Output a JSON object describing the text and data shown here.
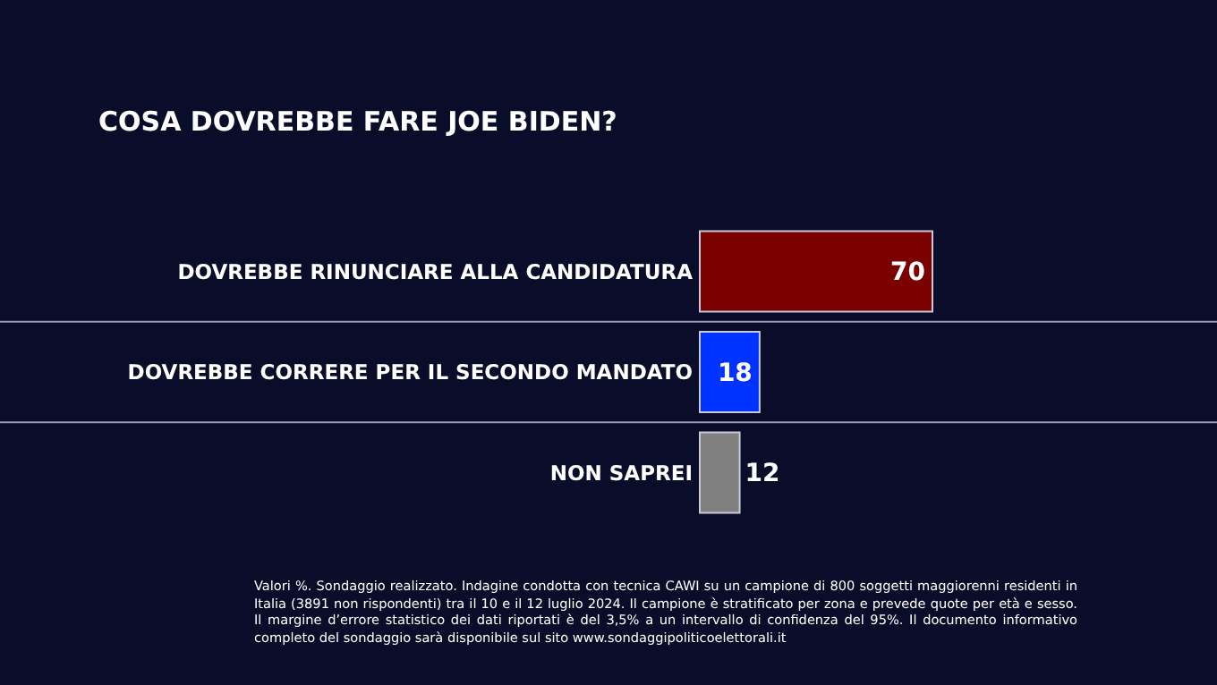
{
  "chart_data": {
    "type": "bar",
    "orientation": "horizontal",
    "title": "COSA DOVREBBE FARE JOE BIDEN?",
    "categories": [
      "DOVREBBE RINUNCIARE ALLA CANDIDATURA",
      "DOVREBBE CORRERE PER IL SECONDO MANDATO",
      "NON SAPREI"
    ],
    "values": [
      70,
      18,
      12
    ],
    "colors": [
      "#7b0000",
      "#0033ff",
      "#808080"
    ],
    "data_labels": true,
    "annotations": [
      "Valori %. Sondaggio realizzato. Indagine condotta con tecnica CAWI su un campione di 800 soggetti maggiorenni residenti in Italia (3891 non rispondenti) tra il 10 e il 12 luglio 2024. Il campione è stratificato per zona e prevede quote per età e sesso. Il margine d’errore statistico dei dati riportati è del 3,5% a un intervallo di confidenza del 95%. Il documento informativo completo del sondaggio sarà disponibile sul sito www.sondaggipoliticoelettorali.it"
    ]
  }
}
